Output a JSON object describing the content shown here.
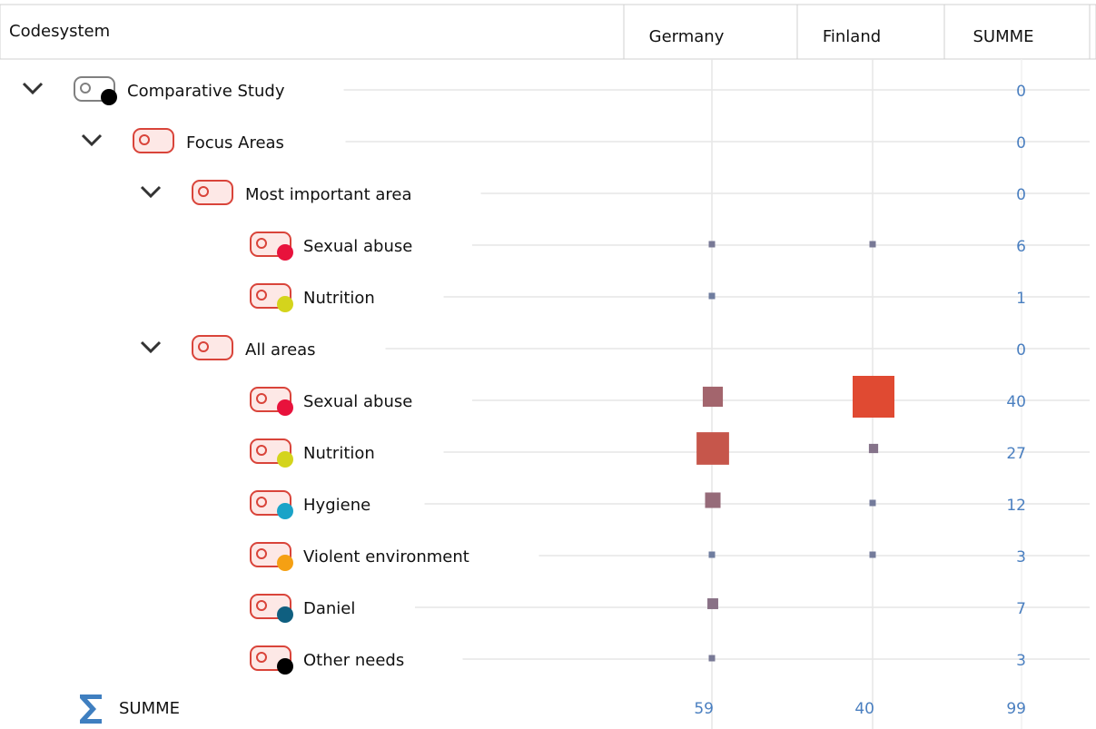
{
  "header": {
    "columns": [
      "Codesystem",
      "Germany",
      "Finland",
      "SUMME"
    ]
  },
  "rows": [
    {
      "label": "Comparative Study",
      "color": "#808080",
      "dot": "#000000",
      "sum": 0,
      "children": [
        {
          "label": "Focus Areas",
          "color": "#d9443a",
          "sum": 0,
          "children": [
            {
              "label": "Most important area",
              "color": "#d9443a",
              "sum": 0,
              "children": [
                {
                  "label": "Sexual abuse",
                  "color": "#d9443a",
                  "dot": "#e8123c",
                  "cells": [
                    3,
                    3
                  ],
                  "sum": 6
                },
                {
                  "label": "Nutrition",
                  "color": "#d9443a",
                  "dot": "#d4d41c",
                  "cells": [
                    1,
                    null
                  ],
                  "sum": 1
                }
              ]
            },
            {
              "label": "All areas",
              "color": "#d9443a",
              "sum": 0,
              "children": [
                {
                  "label": "Sexual abuse",
                  "color": "#d9443a",
                  "dot": "#e8123c",
                  "cells": [
                    13,
                    27
                  ],
                  "sum": 40
                },
                {
                  "label": "Nutrition",
                  "color": "#d9443a",
                  "dot": "#d4d41c",
                  "cells": [
                    21,
                    6
                  ],
                  "sum": 27
                },
                {
                  "label": "Hygiene",
                  "color": "#d9443a",
                  "dot": "#1aa3c8",
                  "cells": [
                    10,
                    2
                  ],
                  "sum": 12
                },
                {
                  "label": "Violent environment",
                  "color": "#d9443a",
                  "dot": "#f5a013",
                  "cells": [
                    1,
                    2
                  ],
                  "sum": 3
                },
                {
                  "label": "Daniel",
                  "color": "#d9443a",
                  "dot": "#0f5f80",
                  "cells": [
                    7,
                    null
                  ],
                  "sum": 7
                },
                {
                  "label": "Other needs",
                  "color": "#d9443a",
                  "dot": "#000000",
                  "cells": [
                    3,
                    null
                  ],
                  "sum": 3
                }
              ]
            }
          ]
        }
      ]
    }
  ],
  "total": {
    "label": "SUMME",
    "cells": [
      59,
      40
    ],
    "sum": 99
  }
}
